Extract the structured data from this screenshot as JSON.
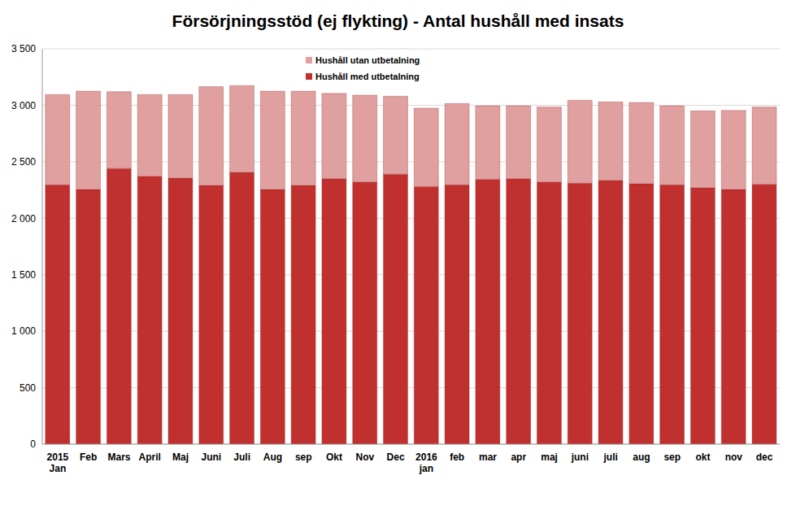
{
  "chart_data": {
    "type": "bar",
    "title": "Försörjningsstöd (ej flykting) - Antal hushåll med insats",
    "categories": [
      "2015 Jan",
      "Feb",
      "Mars",
      "April",
      "Maj",
      "Juni",
      "Juli",
      "Aug",
      "sep",
      "Okt",
      "Nov",
      "Dec",
      "2016 jan",
      "feb",
      "mar",
      "apr",
      "maj",
      "juni",
      "juli",
      "aug",
      "sep",
      "okt",
      "nov",
      "dec"
    ],
    "series": [
      {
        "name": "Hushåll med utbetalning",
        "color": "#c0302e",
        "values": [
          2295,
          2255,
          2440,
          2370,
          2355,
          2290,
          2405,
          2255,
          2290,
          2350,
          2320,
          2390,
          2280,
          2295,
          2345,
          2350,
          2320,
          2310,
          2335,
          2305,
          2295,
          2270,
          2255,
          2300
        ]
      },
      {
        "name": "Hushåll utan utbetalning",
        "color": "#e0a0a0",
        "values": [
          800,
          870,
          680,
          725,
          740,
          875,
          770,
          870,
          835,
          755,
          770,
          690,
          695,
          720,
          650,
          645,
          665,
          735,
          695,
          720,
          700,
          680,
          700,
          685
        ]
      }
    ],
    "stacked": true,
    "ylim": [
      0,
      3500
    ],
    "yticks": [
      0,
      500,
      {
        "value": 1000,
        "label": "1 000"
      },
      {
        "value": 1500,
        "label": "1 500"
      },
      {
        "value": 2000,
        "label": "2 000"
      },
      {
        "value": 2500,
        "label": "2 500"
      },
      {
        "value": 3000,
        "label": "3 000"
      },
      {
        "value": 3500,
        "label": "3 500"
      }
    ],
    "grid": true,
    "legend": "top"
  }
}
